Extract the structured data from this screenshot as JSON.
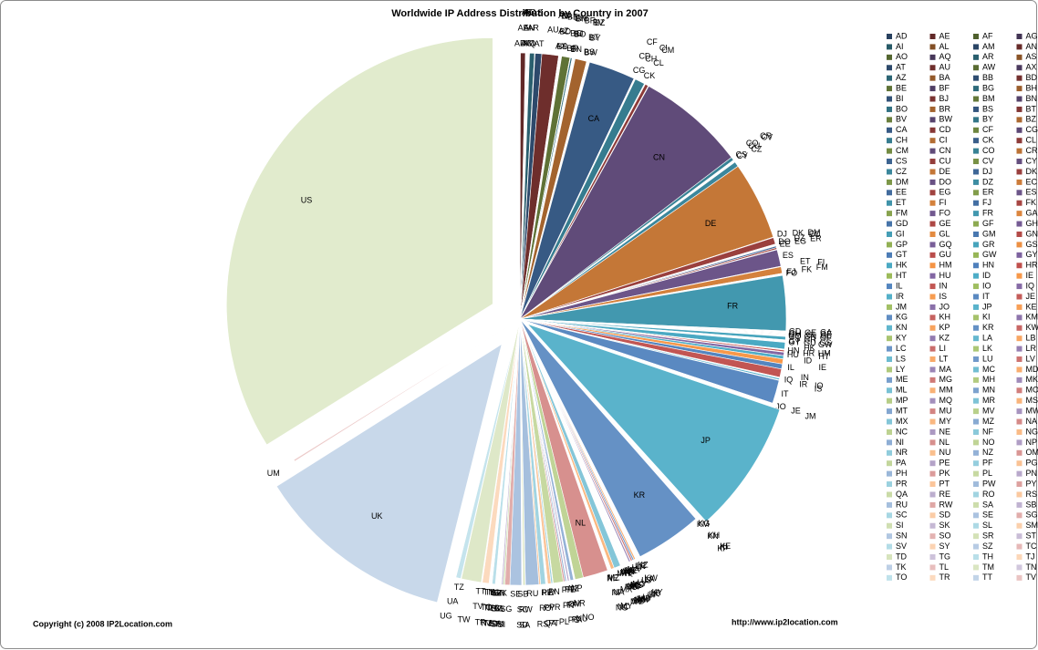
{
  "chart_data": {
    "type": "pie",
    "title": "Worldwide IP Address Distribution by Country in 2007",
    "footer_left": "Copyright (c) 2008 IP2Location.com",
    "footer_right": "http://www.ip2location.com",
    "categories": [
      "AD",
      "AE",
      "AF",
      "AG",
      "AI",
      "AL",
      "AM",
      "AN",
      "AO",
      "AQ",
      "AR",
      "AS",
      "AT",
      "AU",
      "AW",
      "AX",
      "AZ",
      "BA",
      "BB",
      "BD",
      "BE",
      "BF",
      "BG",
      "BH",
      "BI",
      "BJ",
      "BM",
      "BN",
      "BO",
      "BR",
      "BS",
      "BT",
      "BV",
      "BW",
      "BY",
      "BZ",
      "CA",
      "CD",
      "CF",
      "CG",
      "CH",
      "CI",
      "CK",
      "CL",
      "CM",
      "CN",
      "CO",
      "CR",
      "CS",
      "CU",
      "CV",
      "CY",
      "CZ",
      "DE",
      "DJ",
      "DK",
      "DM",
      "DO",
      "DZ",
      "EC",
      "EE",
      "EG",
      "ER",
      "ES",
      "ET",
      "FI",
      "FJ",
      "FK",
      "FM",
      "FO",
      "FR",
      "GA",
      "GD",
      "GE",
      "GF",
      "GH",
      "GI",
      "GL",
      "GM",
      "GN",
      "GP",
      "GQ",
      "GR",
      "GS",
      "GT",
      "GU",
      "GW",
      "GY",
      "HK",
      "HM",
      "HN",
      "HR",
      "HT",
      "HU",
      "ID",
      "IE",
      "IL",
      "IN",
      "IO",
      "IQ",
      "IR",
      "IS",
      "IT",
      "JE",
      "JM",
      "JO",
      "JP",
      "KE",
      "KG",
      "KH",
      "KI",
      "KM",
      "KN",
      "KP",
      "KR",
      "KW",
      "KY",
      "KZ",
      "LA",
      "LB",
      "LC",
      "LI",
      "LK",
      "LR",
      "LS",
      "LT",
      "LU",
      "LV",
      "LY",
      "MA",
      "MC",
      "MD",
      "ME",
      "MG",
      "MH",
      "MK",
      "ML",
      "MM",
      "MN",
      "MO",
      "MP",
      "MQ",
      "MR",
      "MS",
      "MT",
      "MU",
      "MV",
      "MW",
      "MX",
      "MY",
      "MZ",
      "NA",
      "NC",
      "NE",
      "NF",
      "NG",
      "NI",
      "NL",
      "NO",
      "NP",
      "NR",
      "NU",
      "NZ",
      "OM",
      "PA",
      "PE",
      "PF",
      "PG",
      "PH",
      "PK",
      "PL",
      "PN",
      "PR",
      "PT",
      "PW",
      "PY",
      "QA",
      "RE",
      "RO",
      "RS",
      "RU",
      "RW",
      "SA",
      "SB",
      "SC",
      "SD",
      "SE",
      "SG",
      "SI",
      "SK",
      "SL",
      "SM",
      "SN",
      "SO",
      "SR",
      "ST",
      "SV",
      "SY",
      "SZ",
      "TC",
      "TD",
      "TG",
      "TH",
      "TJ",
      "TK",
      "TL",
      "TM",
      "TN",
      "TO",
      "TR",
      "TT",
      "TV",
      "TW",
      "TZ",
      "UA",
      "UG",
      "UK",
      "UM",
      "US"
    ],
    "values": [
      0.03,
      0.3,
      0.03,
      0.03,
      0.03,
      0.03,
      0.03,
      0.03,
      0.03,
      0.03,
      0.3,
      0.03,
      0.4,
      1.0,
      0.03,
      0.03,
      0.03,
      0.03,
      0.03,
      0.03,
      0.5,
      0.03,
      0.1,
      0.03,
      0.03,
      0.03,
      0.03,
      0.03,
      0.03,
      0.7,
      0.03,
      0.03,
      0.03,
      0.03,
      0.03,
      0.03,
      2.8,
      0.03,
      0.03,
      0.03,
      0.6,
      0.03,
      0.03,
      0.2,
      0.03,
      6.5,
      0.2,
      0.03,
      0.03,
      0.03,
      0.03,
      0.03,
      0.3,
      4.7,
      0.03,
      0.4,
      0.03,
      0.03,
      0.03,
      0.03,
      0.1,
      0.1,
      0.03,
      1.0,
      0.03,
      0.4,
      0.03,
      0.03,
      0.03,
      0.03,
      3.3,
      0.03,
      0.03,
      0.03,
      0.03,
      0.03,
      0.03,
      0.03,
      0.03,
      0.03,
      0.03,
      0.03,
      0.2,
      0.03,
      0.03,
      0.03,
      0.03,
      0.03,
      0.4,
      0.03,
      0.03,
      0.1,
      0.03,
      0.2,
      0.2,
      0.3,
      0.3,
      0.5,
      0.03,
      0.03,
      0.1,
      0.03,
      1.4,
      0.03,
      0.03,
      0.03,
      8,
      0.03,
      0.03,
      0.03,
      0.03,
      0.03,
      0.03,
      0.03,
      4,
      0.03,
      0.03,
      0.03,
      0.03,
      0.03,
      0.03,
      0.03,
      0.03,
      0.03,
      0.03,
      0.1,
      0.1,
      0.1,
      0.03,
      0.1,
      0.03,
      0.03,
      0.03,
      0.03,
      0.03,
      0.03,
      0.03,
      0.03,
      0.03,
      0.03,
      0.03,
      0.03,
      0.03,
      0.03,
      0.03,
      0.03,
      0.03,
      0.03,
      0.4,
      0.2,
      0.03,
      0.03,
      0.03,
      0.03,
      0.03,
      0.03,
      0.03,
      1.5,
      0.5,
      0.03,
      0.03,
      0.03,
      0.2,
      0.03,
      0.03,
      0.1,
      0.03,
      0.03,
      0.1,
      0.1,
      0.6,
      0.03,
      0.1,
      0.2,
      0.03,
      0.03,
      0.03,
      0.03,
      0.3,
      0.1,
      0.8,
      0.03,
      0.1,
      0.03,
      0.03,
      0.03,
      0.7,
      0.3,
      0.1,
      0.1,
      0.03,
      0.03,
      0.03,
      0.03,
      0.03,
      0.03,
      0.03,
      0.03,
      0.03,
      0.03,
      0.03,
      0.03,
      0.2,
      0.03,
      0.03,
      0.03,
      0.03,
      0.03,
      0.03,
      0.4,
      0.03,
      0.03,
      1.2,
      0.03,
      0.3,
      0.03,
      12,
      0.1,
      33.5
    ],
    "colors": [
      "#4F81BD",
      "#C0504D",
      "#9BBB59",
      "#8064A2",
      "#4BACC6",
      "#F79646"
    ],
    "exploded": [
      "US",
      "UK",
      "JP"
    ],
    "legend": "right"
  }
}
